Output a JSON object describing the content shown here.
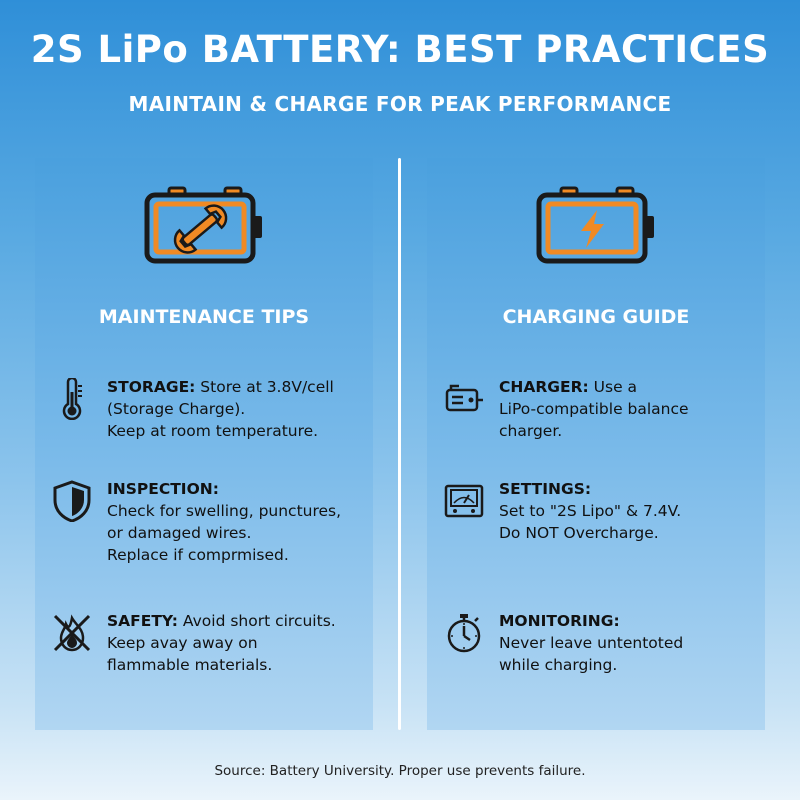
{
  "header": {
    "title": "2S LiPo BATTERY: BEST PRACTICES",
    "subtitle": "MAINTAIN & CHARGE FOR PEAK PERFORMANCE"
  },
  "left_panel": {
    "icon": "battery-wrench-icon",
    "heading": "MAINTENANCE TIPS",
    "tips": [
      {
        "icon": "thermometer-icon",
        "label": "STORAGE:",
        "lines": [
          "Store at 3.8V/cell",
          "(Storage Charge).",
          "Keep at room temperature."
        ]
      },
      {
        "icon": "shield-icon",
        "label": "INSPECTION:",
        "lines": [
          "",
          "Check for swelling, punctures,",
          "or damaged wires.",
          "Replace if comprmised."
        ]
      },
      {
        "icon": "no-fire-icon",
        "label": "SAFETY:",
        "lines": [
          "Avoid short circuits.",
          "Keep avay away on",
          "flammable materials."
        ]
      }
    ]
  },
  "right_panel": {
    "icon": "battery-bolt-icon",
    "heading": "CHARGING GUIDE",
    "tips": [
      {
        "icon": "charger-icon",
        "label": "CHARGER:",
        "lines": [
          "Use a",
          "LiPo-compatible balance",
          "charger."
        ]
      },
      {
        "icon": "meter-icon",
        "label": "SETTINGS:",
        "lines": [
          "",
          "Set to \"2S Lipo\" & 7.4V.",
          "Do NOT Overcharge."
        ]
      },
      {
        "icon": "stopwatch-icon",
        "label": "MONITORING:",
        "lines": [
          "",
          "Never leave untentoted",
          "while charging."
        ]
      }
    ]
  },
  "footer": {
    "source": "Source: Battery University. Proper use prevents failure."
  },
  "colors": {
    "accent_orange": "#f08a24",
    "icon_dark": "#1a1a1a",
    "text_white": "#ffffff"
  }
}
